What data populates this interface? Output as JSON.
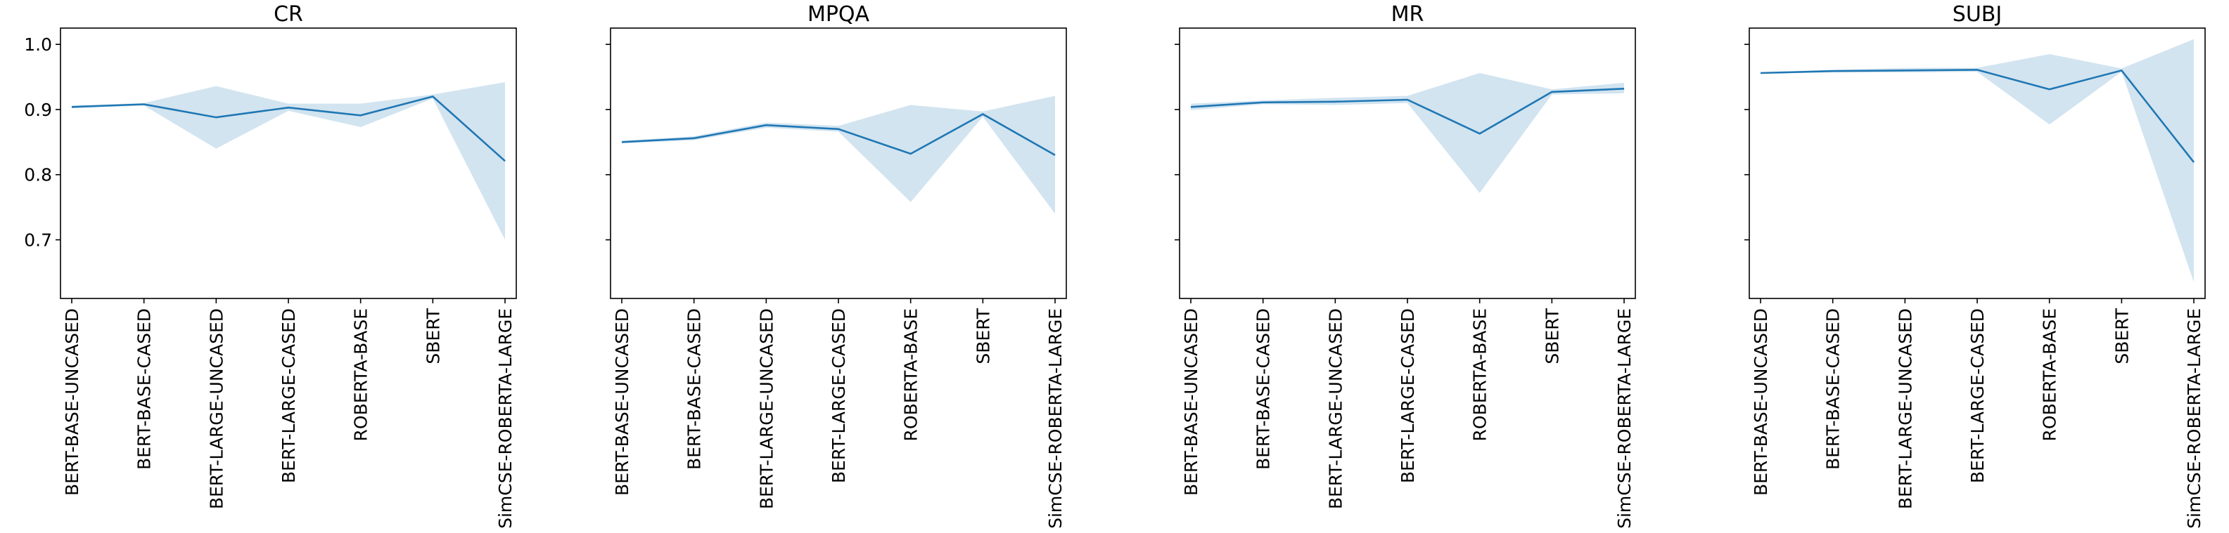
{
  "chart_data": [
    {
      "type": "line",
      "title": "CR",
      "categories": [
        "BERT-BASE-UNCASED",
        "BERT-BASE-CASED",
        "BERT-LARGE-UNCASED",
        "BERT-LARGE-CASED",
        "ROBERTA-BASE",
        "SBERT",
        "SimCSE-ROBERTA-LARGE"
      ],
      "values": [
        0.904,
        0.908,
        0.888,
        0.903,
        0.891,
        0.92,
        0.821
      ],
      "band_lower": [
        0.902,
        0.906,
        0.84,
        0.898,
        0.873,
        0.917,
        0.7
      ],
      "band_upper": [
        0.906,
        0.91,
        0.936,
        0.909,
        0.909,
        0.923,
        0.942
      ],
      "ylim": [
        0.61,
        1.025
      ],
      "yticks": [
        0.7,
        0.8,
        0.9,
        1.0
      ],
      "ytick_labels": [
        "0.7",
        "0.8",
        "0.9",
        "1.0"
      ],
      "show_ytick_labels": true,
      "grid": false
    },
    {
      "type": "line",
      "title": "MPQA",
      "categories": [
        "BERT-BASE-UNCASED",
        "BERT-BASE-CASED",
        "BERT-LARGE-UNCASED",
        "BERT-LARGE-CASED",
        "ROBERTA-BASE",
        "SBERT",
        "SimCSE-ROBERTA-LARGE"
      ],
      "values": [
        0.85,
        0.856,
        0.876,
        0.87,
        0.832,
        0.893,
        0.83
      ],
      "band_lower": [
        0.848,
        0.853,
        0.872,
        0.866,
        0.758,
        0.889,
        0.74
      ],
      "band_upper": [
        0.852,
        0.859,
        0.88,
        0.875,
        0.907,
        0.897,
        0.921
      ],
      "ylim": [
        0.61,
        1.025
      ],
      "yticks": [
        0.7,
        0.8,
        0.9,
        1.0
      ],
      "show_ytick_labels": false,
      "grid": false
    },
    {
      "type": "line",
      "title": "MR",
      "categories": [
        "BERT-BASE-UNCASED",
        "BERT-BASE-CASED",
        "BERT-LARGE-UNCASED",
        "BERT-LARGE-CASED",
        "ROBERTA-BASE",
        "SBERT",
        "SimCSE-ROBERTA-LARGE"
      ],
      "values": [
        0.904,
        0.911,
        0.912,
        0.915,
        0.863,
        0.927,
        0.932
      ],
      "band_lower": [
        0.899,
        0.908,
        0.907,
        0.91,
        0.772,
        0.923,
        0.925
      ],
      "band_upper": [
        0.909,
        0.914,
        0.918,
        0.921,
        0.956,
        0.931,
        0.941
      ],
      "ylim": [
        0.61,
        1.025
      ],
      "yticks": [
        0.7,
        0.8,
        0.9,
        1.0
      ],
      "show_ytick_labels": false,
      "grid": false
    },
    {
      "type": "line",
      "title": "SUBJ",
      "categories": [
        "BERT-BASE-UNCASED",
        "BERT-BASE-CASED",
        "BERT-LARGE-UNCASED",
        "BERT-LARGE-CASED",
        "ROBERTA-BASE",
        "SBERT",
        "SimCSE-ROBERTA-LARGE"
      ],
      "values": [
        0.956,
        0.959,
        0.96,
        0.961,
        0.931,
        0.96,
        0.819
      ],
      "band_lower": [
        0.955,
        0.957,
        0.957,
        0.958,
        0.877,
        0.958,
        0.635
      ],
      "band_upper": [
        0.957,
        0.961,
        0.964,
        0.964,
        0.985,
        0.963,
        1.008
      ],
      "ylim": [
        0.61,
        1.025
      ],
      "yticks": [
        0.7,
        0.8,
        0.9,
        1.0
      ],
      "show_ytick_labels": false,
      "grid": false
    }
  ],
  "colors": {
    "line": "#1f77b4",
    "band": "#1f77b4",
    "frame": "#000000"
  }
}
